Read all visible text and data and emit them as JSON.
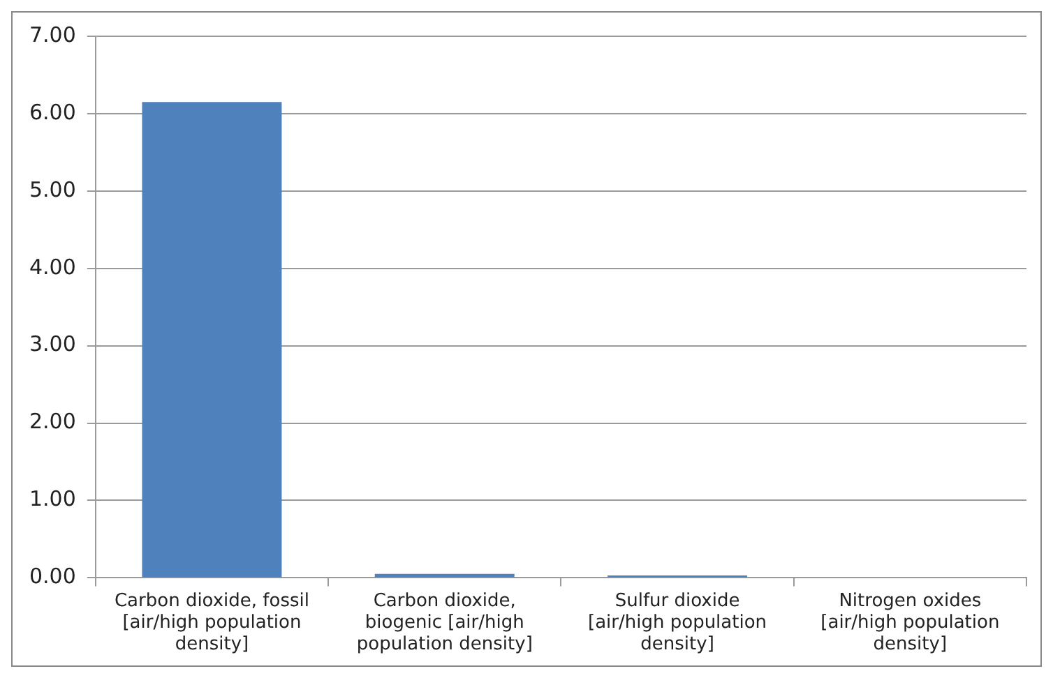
{
  "chart_data": {
    "type": "bar",
    "categories": [
      "Carbon dioxide, fossil [air/high population density]",
      "Carbon dioxide, biogenic [air/high population density]",
      "Sulfur dioxide [air/high population density]",
      "Nitrogen oxides [air/high population density]"
    ],
    "values": [
      6.15,
      0.05,
      0.03,
      0
    ],
    "color": "#4f81bd",
    "ylim": [
      0,
      7
    ],
    "yticks": [
      {
        "value": 0,
        "label": "0.00"
      },
      {
        "value": 1,
        "label": "1.00"
      },
      {
        "value": 2,
        "label": "2.00"
      },
      {
        "value": 3,
        "label": "3.00"
      },
      {
        "value": 4,
        "label": "4.00"
      },
      {
        "value": 5,
        "label": "5.00"
      },
      {
        "value": 6,
        "label": "6.00"
      },
      {
        "value": 7,
        "label": "7.00"
      }
    ],
    "grid": "y"
  }
}
